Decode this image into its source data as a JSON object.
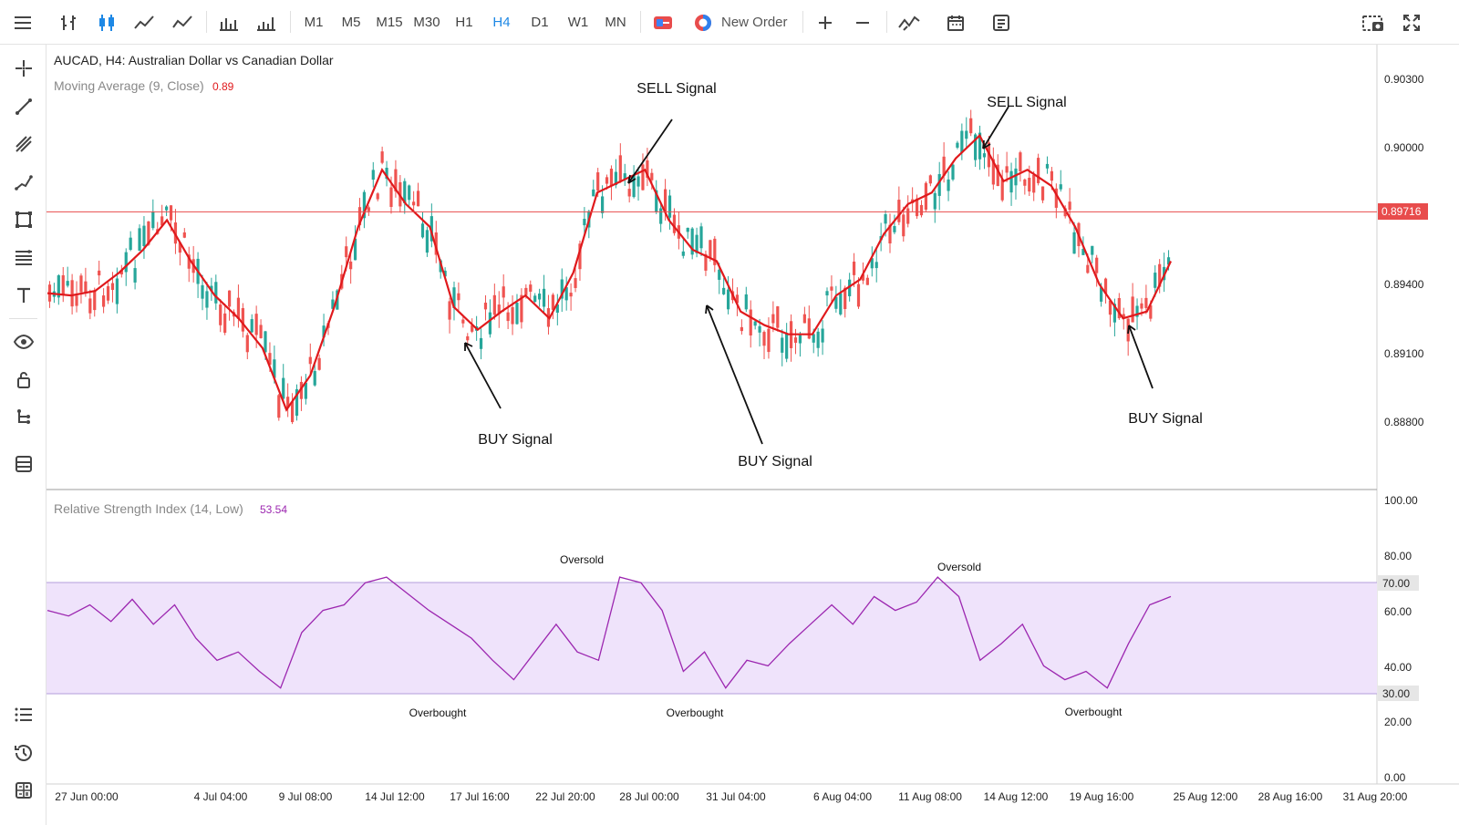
{
  "toolbar": {
    "timeframes": [
      "M1",
      "M5",
      "M15",
      "M30",
      "H1",
      "H4",
      "D1",
      "W1",
      "MN"
    ],
    "active_timeframe": "H4",
    "new_order_label": "New Order"
  },
  "chart": {
    "symbol_title": "AUCAD, H4: Australian Dollar vs Canadian Dollar",
    "ma_label": "Moving Average (9, Close)",
    "ma_value": "0.89",
    "rsi_label": "Relative Strength Index (14, Low)",
    "rsi_value": "53.54",
    "current_price": "0.89716",
    "price_axis": [
      "0.90300",
      "0.90000",
      "0.89400",
      "0.89100",
      "0.88800"
    ],
    "rsi_axis": [
      "100.00",
      "80.00",
      "70.00",
      "60.00",
      "40.00",
      "30.00",
      "20.00",
      "0.00"
    ],
    "time_axis": [
      "27 Jun 00:00",
      "4 Jul 04:00",
      "9 Jul 08:00",
      "14 Jul 12:00",
      "17 Jul 16:00",
      "22 Jul 20:00",
      "28 Jul 00:00",
      "31 Jul 04:00",
      "6 Aug 04:00",
      "11 Aug 08:00",
      "14 Aug 12:00",
      "19 Aug 16:00",
      "25 Aug 12:00",
      "28 Aug 16:00",
      "31 Aug 20:00"
    ],
    "annotations": {
      "sell1": "SELL Signal",
      "sell2": "SELL Signal",
      "buy1": "BUY Signal",
      "buy2": "BUY Signal",
      "buy3": "BUY Signal",
      "rsi_oversold1": "Oversold",
      "rsi_oversold2": "Oversold",
      "rsi_overbought1": "Overbought",
      "rsi_overbought2": "Overbought",
      "rsi_overbought3": "Overbought"
    },
    "colors": {
      "bull": "#26a69a",
      "bear": "#ef5350",
      "ma": "#e0191c",
      "rsi": "#9c27b0",
      "rsi_band": "#efe3fb",
      "price_line": "#e84c4c"
    }
  },
  "chart_data": [
    {
      "type": "line",
      "title": "AUCAD, H4: Australian Dollar vs Canadian Dollar",
      "series": [
        {
          "name": "Moving Average (9, Close)",
          "values": [
            0.8936,
            0.8935,
            0.8937,
            0.8945,
            0.8955,
            0.8968,
            0.895,
            0.8935,
            0.8925,
            0.8912,
            0.8885,
            0.89,
            0.893,
            0.8965,
            0.899,
            0.8975,
            0.8965,
            0.893,
            0.892,
            0.8928,
            0.8935,
            0.8925,
            0.8945,
            0.898,
            0.8985,
            0.899,
            0.8968,
            0.8955,
            0.895,
            0.8928,
            0.8922,
            0.8918,
            0.8918,
            0.8935,
            0.8942,
            0.8962,
            0.8975,
            0.898,
            0.8995,
            0.9005,
            0.8985,
            0.899,
            0.8983,
            0.8965,
            0.894,
            0.8925,
            0.8928,
            0.895
          ]
        }
      ],
      "ylim": [
        0.8855,
        0.9043
      ],
      "current_price": 0.89716
    },
    {
      "type": "line",
      "title": "Relative Strength Index (14, Low)",
      "series": [
        {
          "name": "Relative Strength Index (14, Low)",
          "values": [
            60,
            58,
            62,
            56,
            64,
            55,
            62,
            50,
            42,
            45,
            38,
            32,
            52,
            60,
            62,
            70,
            72,
            66,
            60,
            55,
            50,
            42,
            35,
            45,
            55,
            45,
            42,
            72,
            70,
            60,
            38,
            45,
            32,
            42,
            40,
            48,
            55,
            62,
            55,
            65,
            60,
            63,
            72,
            65,
            42,
            48,
            55,
            40,
            35,
            38,
            32,
            48,
            62,
            65
          ]
        }
      ],
      "ylim": [
        0,
        100
      ],
      "levels": [
        70,
        30
      ]
    }
  ]
}
